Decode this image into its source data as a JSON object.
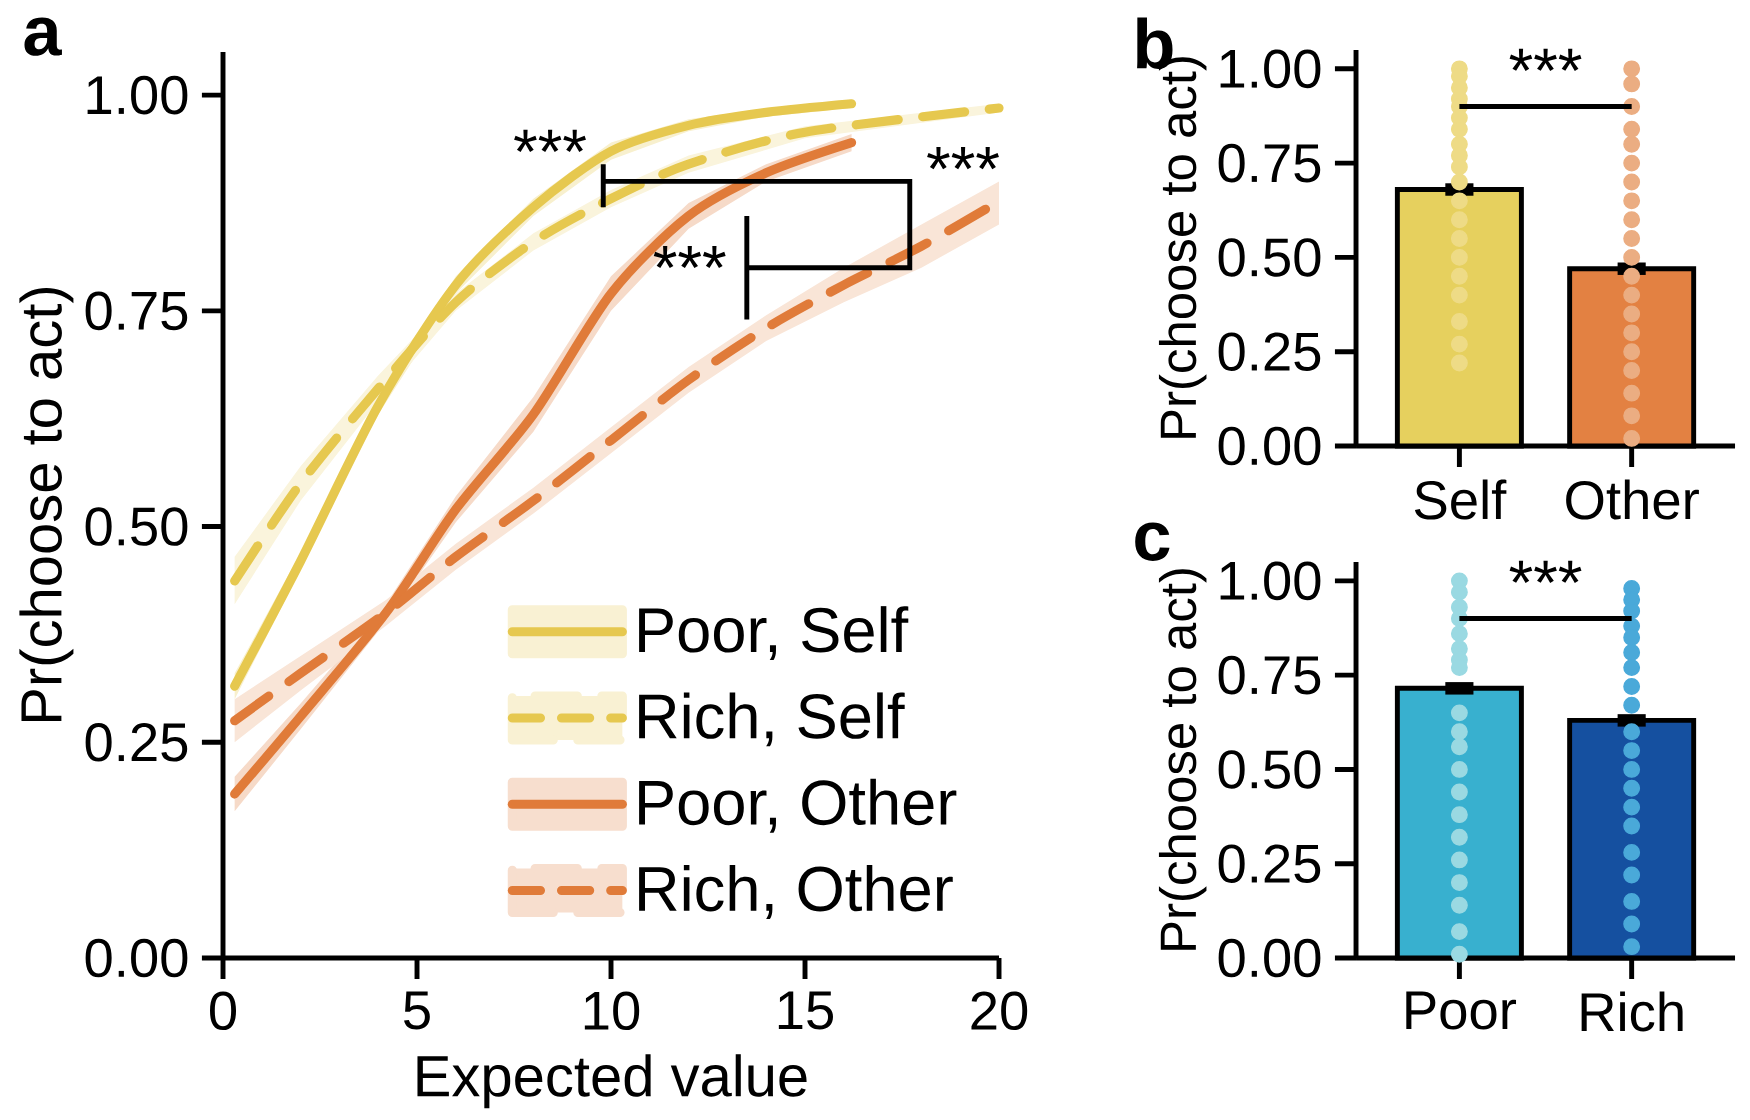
{
  "chart_data": [
    {
      "type": "line",
      "xlabel": "Expected value",
      "ylabel": "Pr(choose to act)",
      "xlim": [
        0,
        20
      ],
      "ylim": [
        0,
        1.05
      ],
      "xticks": [
        0,
        5,
        10,
        15,
        20
      ],
      "yticks": [
        {
          "value": 0,
          "label": "0.00"
        },
        {
          "value": 0.25,
          "label": "0.25"
        },
        {
          "value": 0.5,
          "label": "0.50"
        },
        {
          "value": 0.75,
          "label": "0.75"
        },
        {
          "value": 1,
          "label": "1.00"
        }
      ],
      "legend": "bottom right",
      "grid": false,
      "annotations": [
        "a",
        "***",
        "***",
        "***"
      ],
      "series": [
        {
          "name": "Poor, Self",
          "color": "#e6c84f",
          "line_style": "solid",
          "x": [
            0.3,
            2,
            4,
            6,
            8,
            10,
            12,
            14,
            16.2
          ],
          "values": [
            0.315,
            0.46,
            0.64,
            0.78,
            0.87,
            0.935,
            0.965,
            0.98,
            0.99
          ],
          "lower": [
            0.3,
            0.45,
            0.63,
            0.77,
            0.86,
            0.925,
            0.958,
            0.975,
            0.985
          ],
          "upper": [
            0.33,
            0.47,
            0.65,
            0.79,
            0.88,
            0.945,
            0.972,
            0.985,
            0.995
          ]
        },
        {
          "name": "Rich, Self",
          "color": "#e6c84f",
          "line_style": "dashed",
          "x": [
            0.3,
            2,
            4,
            6,
            8,
            10,
            12,
            15,
            20
          ],
          "values": [
            0.437,
            0.55,
            0.66,
            0.76,
            0.83,
            0.88,
            0.92,
            0.957,
            0.985
          ],
          "lower": [
            0.41,
            0.53,
            0.645,
            0.75,
            0.82,
            0.87,
            0.91,
            0.95,
            0.98
          ],
          "upper": [
            0.465,
            0.57,
            0.675,
            0.77,
            0.84,
            0.89,
            0.93,
            0.964,
            0.99
          ]
        },
        {
          "name": "Poor, Other",
          "color": "#e07b39",
          "line_style": "solid",
          "x": [
            0.3,
            2,
            4.2,
            6,
            8,
            10,
            12,
            14,
            16.2
          ],
          "values": [
            0.19,
            0.28,
            0.4,
            0.52,
            0.63,
            0.77,
            0.86,
            0.91,
            0.945
          ],
          "lower": [
            0.17,
            0.265,
            0.39,
            0.505,
            0.61,
            0.75,
            0.845,
            0.9,
            0.935
          ],
          "upper": [
            0.21,
            0.295,
            0.41,
            0.535,
            0.65,
            0.79,
            0.875,
            0.92,
            0.955
          ]
        },
        {
          "name": "Rich, Other",
          "color": "#e07b39",
          "line_style": "dashed",
          "x": [
            0.3,
            2,
            4.2,
            6,
            8,
            10,
            12,
            14,
            16,
            18,
            20
          ],
          "values": [
            0.275,
            0.33,
            0.4,
            0.465,
            0.53,
            0.6,
            0.67,
            0.73,
            0.78,
            0.825,
            0.877
          ],
          "lower": [
            0.25,
            0.31,
            0.385,
            0.45,
            0.515,
            0.585,
            0.655,
            0.715,
            0.76,
            0.8,
            0.85
          ],
          "upper": [
            0.3,
            0.35,
            0.415,
            0.48,
            0.545,
            0.615,
            0.685,
            0.745,
            0.8,
            0.85,
            0.9
          ]
        }
      ]
    },
    {
      "type": "bar",
      "ylabel": "Pr(choose to act)",
      "categories": [
        "Self",
        "Other"
      ],
      "values": [
        0.68,
        0.47
      ],
      "errors": [
        0.01,
        0.01
      ],
      "colors": [
        "#e6d05e",
        "#e38142"
      ],
      "ylim": [
        0,
        1.05
      ],
      "yticks": [
        {
          "value": 0,
          "label": "0.00"
        },
        {
          "value": 0.25,
          "label": "0.25"
        },
        {
          "value": 0.5,
          "label": "0.50"
        },
        {
          "value": 0.75,
          "label": "0.75"
        },
        {
          "value": 1,
          "label": "1.00"
        }
      ],
      "annotations": [
        "b",
        "***"
      ],
      "series": [
        {
          "type": "scatter",
          "color": "#eedb86",
          "x": [
            "Self",
            "Self",
            "Self",
            "Self",
            "Self",
            "Self",
            "Self",
            "Self",
            "Self",
            "Self",
            "Self",
            "Self",
            "Self",
            "Self",
            "Self",
            "Self",
            "Self",
            "Self",
            "Self",
            "Self"
          ],
          "values": [
            1.0,
            0.98,
            0.95,
            0.92,
            0.9,
            0.87,
            0.84,
            0.8,
            0.77,
            0.74,
            0.7,
            0.65,
            0.6,
            0.55,
            0.5,
            0.45,
            0.4,
            0.33,
            0.27,
            0.22
          ]
        },
        {
          "type": "scatter",
          "color": "#ebad82",
          "x": [
            "Other",
            "Other",
            "Other",
            "Other",
            "Other",
            "Other",
            "Other",
            "Other",
            "Other",
            "Other",
            "Other",
            "Other",
            "Other",
            "Other",
            "Other",
            "Other",
            "Other",
            "Other",
            "Other",
            "Other"
          ],
          "values": [
            1.0,
            0.96,
            0.9,
            0.84,
            0.8,
            0.75,
            0.7,
            0.65,
            0.6,
            0.55,
            0.5,
            0.45,
            0.4,
            0.35,
            0.3,
            0.25,
            0.2,
            0.14,
            0.08,
            0.02
          ]
        }
      ]
    },
    {
      "type": "bar",
      "ylabel": "Pr(choose to act)",
      "categories": [
        "Poor",
        "Rich"
      ],
      "values": [
        0.715,
        0.63
      ],
      "errors": [
        0.01,
        0.01
      ],
      "colors": [
        "#38b0cf",
        "#1550a0"
      ],
      "ylim": [
        0,
        1.05
      ],
      "yticks": [
        {
          "value": 0,
          "label": "0.00"
        },
        {
          "value": 0.25,
          "label": "0.25"
        },
        {
          "value": 0.5,
          "label": "0.50"
        },
        {
          "value": 0.75,
          "label": "0.75"
        },
        {
          "value": 1,
          "label": "1.00"
        }
      ],
      "annotations": [
        "c",
        "***"
      ],
      "series": [
        {
          "type": "scatter",
          "color": "#9ad9e2",
          "x": [
            "Poor",
            "Poor",
            "Poor",
            "Poor",
            "Poor",
            "Poor",
            "Poor",
            "Poor",
            "Poor",
            "Poor",
            "Poor",
            "Poor",
            "Poor",
            "Poor",
            "Poor",
            "Poor",
            "Poor",
            "Poor",
            "Poor",
            "Poor"
          ],
          "values": [
            1.0,
            0.97,
            0.93,
            0.9,
            0.86,
            0.82,
            0.79,
            0.77,
            0.65,
            0.6,
            0.56,
            0.5,
            0.44,
            0.38,
            0.32,
            0.26,
            0.2,
            0.14,
            0.07,
            0.01
          ]
        },
        {
          "type": "scatter",
          "color": "#4aa9d9",
          "x": [
            "Rich",
            "Rich",
            "Rich",
            "Rich",
            "Rich",
            "Rich",
            "Rich",
            "Rich",
            "Rich",
            "Rich",
            "Rich",
            "Rich",
            "Rich",
            "Rich",
            "Rich",
            "Rich",
            "Rich",
            "Rich",
            "Rich",
            "Rich"
          ],
          "values": [
            0.98,
            0.95,
            0.92,
            0.88,
            0.85,
            0.81,
            0.77,
            0.72,
            0.67,
            0.6,
            0.55,
            0.5,
            0.45,
            0.4,
            0.35,
            0.28,
            0.22,
            0.15,
            0.09,
            0.03
          ]
        }
      ]
    }
  ]
}
